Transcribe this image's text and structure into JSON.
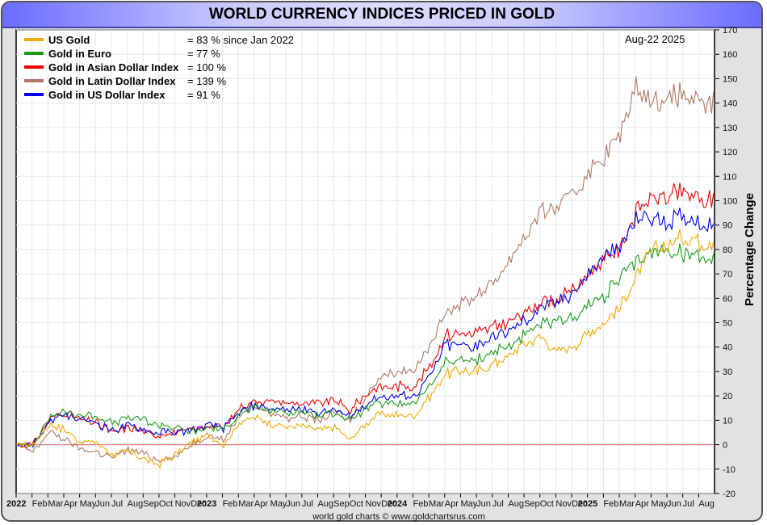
{
  "chart_data": {
    "type": "line",
    "title": "WORLD CURRENCY INDICES PRICED IN GOLD",
    "date_label": "Aug-22  2025",
    "ylabel": "Percentage Change",
    "xlabel": "",
    "ylim": [
      -20,
      170
    ],
    "yticks": [
      -20,
      -10,
      0,
      10,
      20,
      30,
      40,
      50,
      60,
      70,
      80,
      90,
      100,
      110,
      120,
      130,
      140,
      150,
      160,
      170
    ],
    "grid": true,
    "legend_position": "top-left",
    "credit": "world gold charts © www.goldchartsrus.com",
    "zero_line_color": "#e06060",
    "x_tick_labels": [
      "2022",
      "Feb",
      "Mar",
      "Apr",
      "May",
      "Jun",
      "Jul",
      "Aug",
      "Sep",
      "Oct",
      "Nov",
      "Dec",
      "2023",
      "Feb",
      "Mar",
      "Apr",
      "May",
      "Jun",
      "Jul",
      "Aug",
      "Sep",
      "Oct",
      "Nov",
      "Dec",
      "2024",
      "Feb",
      "Mar",
      "Apr",
      "May",
      "Jun",
      "Jul",
      "Aug",
      "Sep",
      "Oct",
      "Nov",
      "Dec",
      "2025",
      "Feb",
      "Mar",
      "Apr",
      "May",
      "Jun",
      "Jul",
      "Aug"
    ],
    "x_months": [
      "2022-01",
      "2022-02",
      "2022-03",
      "2022-04",
      "2022-05",
      "2022-06",
      "2022-07",
      "2022-08",
      "2022-09",
      "2022-10",
      "2022-11",
      "2022-12",
      "2023-01",
      "2023-02",
      "2023-03",
      "2023-04",
      "2023-05",
      "2023-06",
      "2023-07",
      "2023-08",
      "2023-09",
      "2023-10",
      "2023-11",
      "2023-12",
      "2024-01",
      "2024-02",
      "2024-03",
      "2024-04",
      "2024-05",
      "2024-06",
      "2024-07",
      "2024-08",
      "2024-09",
      "2024-10",
      "2024-11",
      "2024-12",
      "2025-01",
      "2025-02",
      "2025-03",
      "2025-04",
      "2025-05",
      "2025-06",
      "2025-07",
      "2025-08"
    ],
    "series": [
      {
        "name": "US Gold",
        "color": "#f0a800",
        "summary": "= 83 % since Jan 2022",
        "values": [
          0,
          0,
          8,
          6,
          1,
          1,
          -4,
          -3,
          -6,
          -8,
          -4,
          1,
          4,
          0,
          9,
          11,
          9,
          7,
          8,
          6,
          7,
          2,
          9,
          13,
          12,
          12,
          20,
          29,
          30,
          30,
          33,
          36,
          42,
          44,
          38,
          40,
          46,
          50,
          56,
          68,
          80,
          82,
          85,
          83
        ]
      },
      {
        "name": "Gold in Euro",
        "color": "#1a9a1a",
        "summary": "= 77 %",
        "values": [
          0,
          0,
          11,
          13,
          12,
          12,
          9,
          11,
          10,
          8,
          7,
          5,
          7,
          6,
          13,
          15,
          14,
          13,
          14,
          12,
          13,
          10,
          15,
          17,
          17,
          17,
          24,
          34,
          34,
          35,
          38,
          40,
          45,
          49,
          50,
          52,
          57,
          61,
          68,
          74,
          79,
          80,
          78,
          77
        ]
      },
      {
        "name": "Gold in Asian Dollar Index",
        "color": "#ee0000",
        "summary": "= 100 %",
        "values": [
          0,
          0,
          10,
          13,
          10,
          9,
          5,
          7,
          5,
          4,
          5,
          6,
          8,
          7,
          15,
          18,
          18,
          17,
          17,
          17,
          18,
          14,
          21,
          24,
          24,
          24,
          32,
          45,
          45,
          46,
          48,
          50,
          54,
          59,
          59,
          63,
          70,
          76,
          80,
          95,
          101,
          102,
          103,
          100
        ]
      },
      {
        "name": "Gold in Latin Dollar Index",
        "color": "#b07860",
        "summary": "= 139 %",
        "values": [
          0,
          -3,
          5,
          2,
          -2,
          -3,
          -5,
          -2,
          -4,
          -6,
          -5,
          0,
          4,
          2,
          12,
          16,
          13,
          11,
          12,
          10,
          13,
          10,
          20,
          29,
          30,
          31,
          40,
          55,
          57,
          62,
          66,
          75,
          86,
          95,
          97,
          102,
          112,
          118,
          127,
          146,
          141,
          142,
          143,
          139
        ]
      },
      {
        "name": "Gold in US Dollar Index",
        "color": "#0000ee",
        "summary": "= 91 %",
        "values": [
          0,
          0,
          9,
          12,
          10,
          9,
          6,
          8,
          6,
          5,
          5,
          6,
          8,
          7,
          13,
          16,
          15,
          14,
          15,
          13,
          14,
          11,
          17,
          20,
          20,
          20,
          28,
          41,
          40,
          41,
          44,
          46,
          51,
          56,
          58,
          62,
          70,
          77,
          80,
          92,
          93,
          92,
          93,
          91
        ]
      }
    ]
  }
}
